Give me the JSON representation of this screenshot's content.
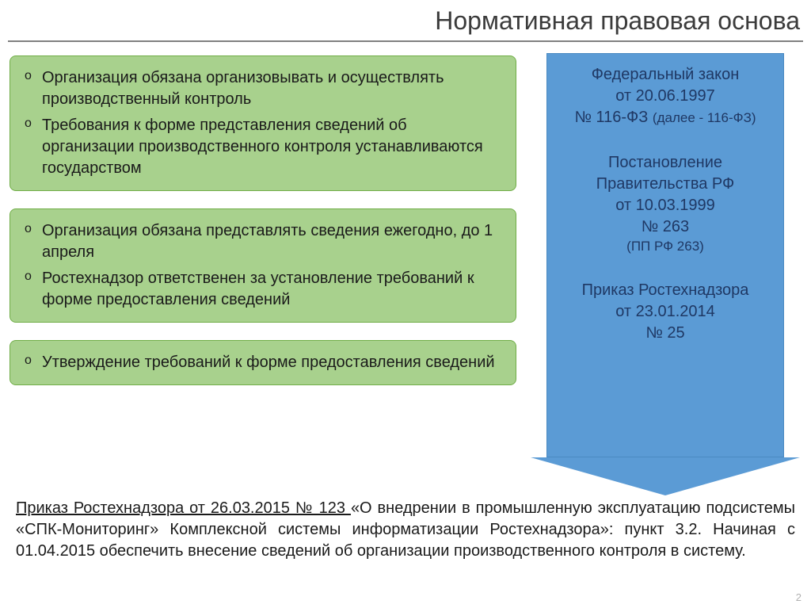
{
  "title": "Нормативная правовая основа",
  "boxes": {
    "box1": {
      "item1": "Организация обязана организовывать и осуществлять производственный контроль",
      "item2": "Требования к форме представления сведений об организации производственного контроля устанавливаются государством"
    },
    "box2": {
      "item1": "Организация обязана представлять сведения ежегодно, до 1 апреля",
      "item2": "Ростехнадзор ответственен за установление требований к форме предоставления сведений"
    },
    "box3": {
      "item1": "Утверждение требований к форме предоставления сведений"
    }
  },
  "laws": {
    "law1": {
      "line1": "Федеральный закон",
      "line2": "от 20.06.1997",
      "line3": "№ 116-ФЗ",
      "sub": "(далее - 116-ФЗ)"
    },
    "law2": {
      "line1": "Постановление Правительства РФ",
      "line2": "от 10.03.1999",
      "line3": "№ 263",
      "sub": "(ПП РФ 263)"
    },
    "law3": {
      "line1": "Приказ Ростехнадзора",
      "line2": "от 23.01.2014",
      "line3": "№ 25"
    }
  },
  "footer": {
    "underlined": "Приказ Ростехнадзора от 26.03.2015 № 123 ",
    "rest": "«О внедрении в промышленную эксплуатацию подсистемы «СПК-Мониторинг» Комплексной системы информатизации Ростехнадзора»: пункт 3.2. Начиная с 01.04.2015 обеспечить внесение сведений об организации производственного контроля в систему."
  },
  "page_number": "2",
  "colors": {
    "green_box_bg": "#a8d18d",
    "green_box_border": "#70ad47",
    "arrow_bg": "#5b9bd5",
    "arrow_text": "#1f3864",
    "title_color": "#3b3b3b",
    "divider": "#808080"
  }
}
